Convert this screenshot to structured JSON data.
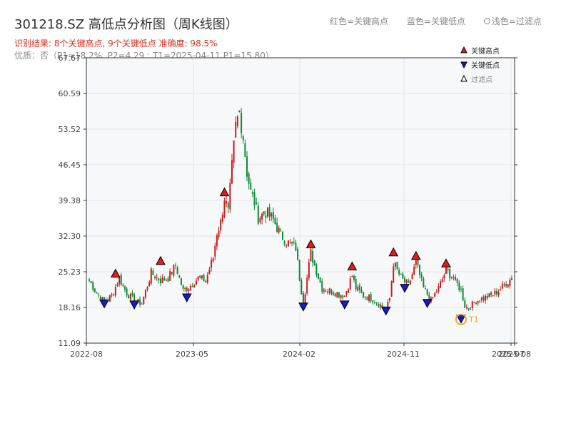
{
  "header": {
    "title": "301218.SZ 高低点分析图（周K线图）",
    "result_text": "识别结果: 8个关键高点, 9个关键低点  准确度: 98.5%",
    "info_text": "优质：否（P1=18.2%, P2=4.29 ; T1=2025-04-11 P1=15.80）",
    "legend_red": "红色=关键高点",
    "legend_blue": "蓝色=关键低点",
    "legend_light": "浅色=过滤点"
  },
  "colors": {
    "up": "#cc1b1b",
    "down": "#0e8a34",
    "high_marker": "#e41a1c",
    "low_marker": "#1a1acc",
    "highlight": "#f5a623",
    "plot_bg": "#f6f8fa",
    "grid": "#e0e4ea"
  },
  "chart_data": {
    "type": "candlestick",
    "title": "301218.SZ 高低点分析图（周K线图）",
    "ylim": [
      11.09,
      67.67
    ],
    "y_ticks": [
      "11.09",
      "18.16",
      "25.23",
      "32.30",
      "39.38",
      "46.45",
      "53.52",
      "60.59",
      "67.67"
    ],
    "x_ticks": [
      "2022-08",
      "2023-05",
      "2024-02",
      "2024-11",
      "2025-07",
      "2025-08"
    ],
    "x_range": [
      "2022-08",
      "2025-08"
    ],
    "legend": {
      "placement": "top-right",
      "items": [
        {
          "label": "关键高点",
          "kind": "high"
        },
        {
          "label": "关键低点",
          "kind": "low"
        },
        {
          "label": "过滤点",
          "kind": "filtered"
        }
      ]
    },
    "price_path": [
      [
        0,
        23.5
      ],
      [
        4,
        21.0
      ],
      [
        8,
        19.2
      ],
      [
        12,
        20.5
      ],
      [
        16,
        24.0
      ],
      [
        20,
        21.0
      ],
      [
        24,
        19.5
      ],
      [
        28,
        19.0
      ],
      [
        33,
        25.0
      ],
      [
        38,
        23.5
      ],
      [
        42,
        24.0
      ],
      [
        46,
        26.5
      ],
      [
        50,
        21.5
      ],
      [
        54,
        22.5
      ],
      [
        58,
        24.0
      ],
      [
        62,
        23.5
      ],
      [
        66,
        28.0
      ],
      [
        68,
        33.0
      ],
      [
        70,
        35.0
      ],
      [
        72,
        40.0
      ],
      [
        74,
        37.0
      ],
      [
        76,
        46.0
      ],
      [
        78,
        54.0
      ],
      [
        80,
        57.0
      ],
      [
        82,
        52.0
      ],
      [
        84,
        45.0
      ],
      [
        86,
        41.0
      ],
      [
        88,
        39.0
      ],
      [
        90,
        36.0
      ],
      [
        94,
        37.0
      ],
      [
        98,
        35.5
      ],
      [
        102,
        32.5
      ],
      [
        106,
        31.0
      ],
      [
        110,
        30.0
      ],
      [
        112,
        24.0
      ],
      [
        114,
        19.0
      ],
      [
        116,
        24.0
      ],
      [
        118,
        29.0
      ],
      [
        120,
        26.5
      ],
      [
        124,
        22.0
      ],
      [
        128,
        21.5
      ],
      [
        132,
        21.0
      ],
      [
        136,
        20.5
      ],
      [
        140,
        24.5
      ],
      [
        142,
        22.0
      ],
      [
        146,
        20.5
      ],
      [
        150,
        20.0
      ],
      [
        154,
        19.0
      ],
      [
        158,
        17.5
      ],
      [
        160,
        20.0
      ],
      [
        162,
        27.0
      ],
      [
        166,
        24.0
      ],
      [
        170,
        22.5
      ],
      [
        174,
        27.0
      ],
      [
        178,
        22.0
      ],
      [
        182,
        19.5
      ],
      [
        186,
        22.0
      ],
      [
        190,
        25.5
      ],
      [
        194,
        24.0
      ],
      [
        198,
        21.5
      ],
      [
        200,
        18.5
      ],
      [
        202,
        18.0
      ],
      [
        206,
        19.5
      ],
      [
        210,
        20.0
      ],
      [
        214,
        20.5
      ],
      [
        218,
        21.5
      ],
      [
        222,
        23.0
      ],
      [
        225,
        24.0
      ]
    ],
    "key_highs": [
      {
        "t": 14,
        "price": 23.9
      },
      {
        "t": 38,
        "price": 26.4
      },
      {
        "t": 72,
        "price": 40.0
      },
      {
        "t": 118,
        "price": 29.7
      },
      {
        "t": 140,
        "price": 25.3
      },
      {
        "t": 162,
        "price": 28.1
      },
      {
        "t": 174,
        "price": 27.4
      },
      {
        "t": 190,
        "price": 25.9
      }
    ],
    "key_lows": [
      {
        "t": 8,
        "price": 18.8
      },
      {
        "t": 24,
        "price": 18.6
      },
      {
        "t": 52,
        "price": 20.0
      },
      {
        "t": 114,
        "price": 18.2
      },
      {
        "t": 136,
        "price": 18.6
      },
      {
        "t": 158,
        "price": 17.4
      },
      {
        "t": 168,
        "price": 21.9
      },
      {
        "t": 180,
        "price": 18.9
      },
      {
        "t": 198,
        "price": 15.8
      }
    ],
    "highlight": {
      "label": "T1",
      "t": 198,
      "price": 15.8
    }
  }
}
